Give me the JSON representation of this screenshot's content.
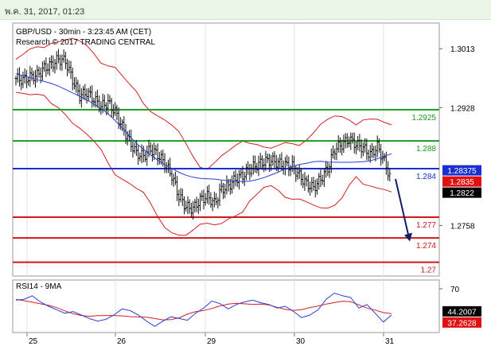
{
  "header": {
    "datetime": "พ.ค. 31, 2017, 01:23"
  },
  "chart_data": {
    "type": "line",
    "title": "GBP/USD - 30min - 3:23:45 AM (CET)",
    "subtitle": "Research © 2017 TRADING CENTRAL",
    "x_labels": [
      "25",
      "26",
      "29",
      "30",
      "31"
    ],
    "price_axis_ticks": [
      "1.3013",
      "1.2928",
      "1.2758"
    ],
    "ylim": [
      1.2685,
      1.305
    ],
    "resistance_levels": [
      {
        "label": "1.2925",
        "value": 1.2925,
        "color": "#1e9a1e"
      },
      {
        "label": "1.288",
        "value": 1.288,
        "color": "#1e9a1e"
      }
    ],
    "pivot_level": {
      "label": "1.284",
      "value": 1.284,
      "color": "#1a2fd0"
    },
    "support_levels": [
      {
        "label": "1.277",
        "value": 1.277,
        "color": "#d01818"
      },
      {
        "label": "1.274",
        "value": 1.274,
        "color": "#d01818"
      },
      {
        "label": "1.27",
        "value": 1.2705,
        "color": "#d01818"
      }
    ],
    "price_tags": [
      {
        "label": "1.28375",
        "value": 1.28375,
        "bg": "#1a2fd0",
        "fg": "#ffffff"
      },
      {
        "label": "1.2835",
        "value": 1.283,
        "bg": "#e01010",
        "fg": "#ffffff"
      },
      {
        "label": "1.2822",
        "value": 1.282,
        "bg": "#000000",
        "fg": "#ffffff"
      }
    ],
    "price_close": [
      1.297,
      1.2968,
      1.2972,
      1.2975,
      1.2985,
      1.299,
      1.2998,
      1.2995,
      1.2968,
      1.2945,
      1.295,
      1.294,
      1.293,
      1.2935,
      1.2922,
      1.29,
      1.288,
      1.2862,
      1.2858,
      1.2868,
      1.286,
      1.2848,
      1.283,
      1.28,
      1.2785,
      1.2782,
      1.2795,
      1.28,
      1.279,
      1.281,
      1.2815,
      1.2825,
      1.283,
      1.284,
      1.2845,
      1.285,
      1.2852,
      1.2848,
      1.2845,
      1.2843,
      1.283,
      1.2818,
      1.2812,
      1.2825,
      1.284,
      1.2868,
      1.2875,
      1.2882,
      1.2875,
      1.287,
      1.286,
      1.2872,
      1.285,
      1.2822
    ],
    "rsi": {
      "title": "RSI14 - 9MA",
      "ylim": [
        20,
        80
      ],
      "ticks": [
        "70"
      ],
      "value_tags": [
        {
          "label": "44.2007",
          "value": 44.2,
          "bg": "#000000",
          "fg": "#ffffff"
        },
        {
          "label": "37.2628",
          "value": 37.3,
          "bg": "#e01010",
          "fg": "#ffffff"
        }
      ],
      "values": [
        57,
        58,
        62,
        55,
        50,
        46,
        42,
        44,
        40,
        36,
        33,
        35,
        40,
        47,
        45,
        40,
        33,
        27,
        33,
        38,
        36,
        34,
        42,
        48,
        56,
        53,
        47,
        52,
        55,
        57,
        54,
        52,
        48,
        50,
        44,
        37,
        40,
        46,
        58,
        65,
        62,
        60,
        48,
        52,
        42,
        32,
        40
      ]
    }
  }
}
